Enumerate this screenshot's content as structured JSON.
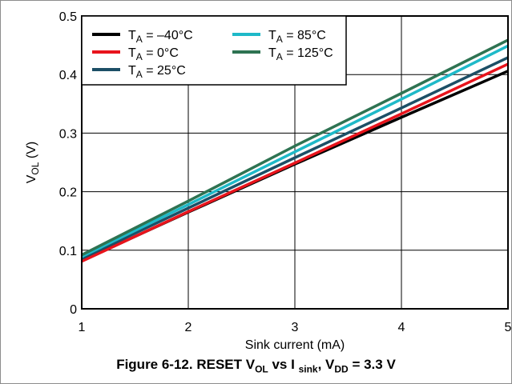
{
  "caption": {
    "prefix": "Figure 6-12. RESET V",
    "sub1": "OL",
    "mid": " vs I ",
    "sub2": "sink",
    "mid2": ", V",
    "sub3": "DD",
    "suffix": " = 3.3 V"
  },
  "chart_data": {
    "type": "line",
    "xlabel": "Sink current (mA)",
    "ylabel_main": "V",
    "ylabel_sub": "OL",
    "ylabel_unit": " (V)",
    "xlim": [
      1,
      5
    ],
    "ylim": [
      0,
      0.5
    ],
    "xticks": [
      "1",
      "2",
      "3",
      "4",
      "5"
    ],
    "yticks": [
      "0",
      "0.1",
      "0.2",
      "0.3",
      "0.4",
      "0.5"
    ],
    "grid": true,
    "legend_position": "top-left",
    "x": [
      1,
      2,
      3,
      4,
      5
    ],
    "series": [
      {
        "name_main": "T",
        "name_sub": "A",
        "name_rest": " = –40°C",
        "color": "#000000",
        "values": [
          0.082,
          0.165,
          0.247,
          0.327,
          0.406
        ]
      },
      {
        "name_main": "T",
        "name_sub": "A",
        "name_rest": " = 0°C",
        "color": "#e8141c",
        "values": [
          0.081,
          0.166,
          0.249,
          0.333,
          0.418
        ]
      },
      {
        "name_main": "T",
        "name_sub": "A",
        "name_rest": " = 25°C",
        "color": "#1c4f66",
        "values": [
          0.086,
          0.172,
          0.258,
          0.343,
          0.429
        ]
      },
      {
        "name_main": "T",
        "name_sub": "A",
        "name_rest": " = 85°C",
        "color": "#1eb9c8",
        "values": [
          0.089,
          0.178,
          0.268,
          0.358,
          0.449
        ]
      },
      {
        "name_main": "T",
        "name_sub": "A",
        "name_rest": " = 125°C",
        "color": "#2e7352",
        "values": [
          0.092,
          0.184,
          0.278,
          0.368,
          0.459
        ]
      }
    ]
  }
}
